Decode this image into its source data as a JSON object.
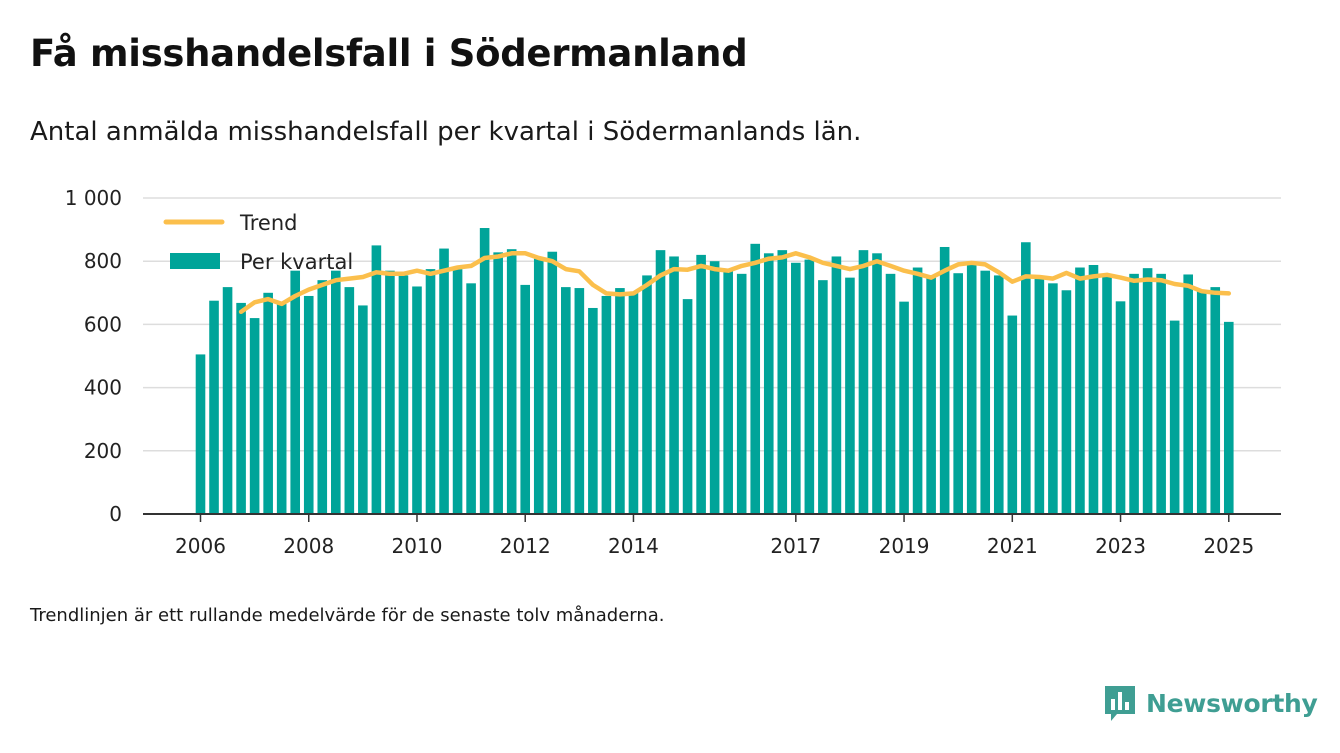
{
  "title": "Få misshandelsfall i Södermanland",
  "subtitle": "Antal anmälda misshandelsfall per kvartal i Södermanlands län.",
  "footnote": "Trendlinjen är ett rullande medelvärde för de senaste tolv månaderna.",
  "brand": {
    "name": "Newsworthy",
    "icon": "newsworthy-logo-icon"
  },
  "colors": {
    "bars": "#00a499",
    "trend": "#fbbf4c",
    "grid": "#dddddd",
    "axis": "#333333",
    "brand": "#3f9e93"
  },
  "chart_data": {
    "type": "bar",
    "grid": true,
    "legend_position": "top-left",
    "ylim": [
      0,
      1000
    ],
    "y_ticks": [
      {
        "value": 0,
        "label": "0"
      },
      {
        "value": 200,
        "label": "200"
      },
      {
        "value": 400,
        "label": "400"
      },
      {
        "value": 600,
        "label": "600"
      },
      {
        "value": 800,
        "label": "800"
      },
      {
        "value": 1000,
        "label": "1 000"
      }
    ],
    "x_ticks": [
      {
        "index": 0,
        "label": "2006"
      },
      {
        "index": 8,
        "label": "2008"
      },
      {
        "index": 16,
        "label": "2010"
      },
      {
        "index": 24,
        "label": "2012"
      },
      {
        "index": 32,
        "label": "2014"
      },
      {
        "index": 44,
        "label": "2017"
      },
      {
        "index": 52,
        "label": "2019"
      },
      {
        "index": 60,
        "label": "2021"
      },
      {
        "index": 68,
        "label": "2023"
      },
      {
        "index": 76,
        "label": "2025"
      }
    ],
    "categories": [
      "2006 Q1",
      "2006 Q2",
      "2006 Q3",
      "2006 Q4",
      "2007 Q1",
      "2007 Q2",
      "2007 Q3",
      "2007 Q4",
      "2008 Q1",
      "2008 Q2",
      "2008 Q3",
      "2008 Q4",
      "2009 Q1",
      "2009 Q2",
      "2009 Q3",
      "2009 Q4",
      "2010 Q1",
      "2010 Q2",
      "2010 Q3",
      "2010 Q4",
      "2011 Q1",
      "2011 Q2",
      "2011 Q3",
      "2011 Q4",
      "2012 Q1",
      "2012 Q2",
      "2012 Q3",
      "2012 Q4",
      "2013 Q1",
      "2013 Q2",
      "2013 Q3",
      "2013 Q4",
      "2014 Q1",
      "2014 Q2",
      "2014 Q3",
      "2014 Q4",
      "2015 Q1",
      "2015 Q2",
      "2015 Q3",
      "2015 Q4",
      "2016 Q1",
      "2016 Q2",
      "2016 Q3",
      "2016 Q4",
      "2017 Q1",
      "2017 Q2",
      "2017 Q3",
      "2017 Q4",
      "2018 Q1",
      "2018 Q2",
      "2018 Q3",
      "2018 Q4",
      "2019 Q1",
      "2019 Q2",
      "2019 Q3",
      "2019 Q4",
      "2020 Q1",
      "2020 Q2",
      "2020 Q3",
      "2020 Q4",
      "2021 Q1",
      "2021 Q2",
      "2021 Q3",
      "2021 Q4",
      "2022 Q1",
      "2022 Q2",
      "2022 Q3",
      "2022 Q4",
      "2023 Q1",
      "2023 Q2",
      "2023 Q3",
      "2023 Q4",
      "2024 Q1",
      "2024 Q2",
      "2024 Q3",
      "2024 Q4",
      "2025 Q1"
    ],
    "series": [
      {
        "name": "Per kvartal",
        "kind": "bar",
        "values": [
          505,
          675,
          718,
          668,
          620,
          700,
          665,
          770,
          690,
          740,
          770,
          718,
          660,
          850,
          770,
          755,
          720,
          775,
          840,
          775,
          730,
          905,
          828,
          838,
          725,
          808,
          830,
          718,
          715,
          652,
          690,
          715,
          702,
          755,
          835,
          815,
          680,
          820,
          800,
          770,
          760,
          855,
          825,
          835,
          795,
          805,
          740,
          815,
          748,
          835,
          825,
          760,
          672,
          780,
          750,
          845,
          762,
          790,
          770,
          755,
          628,
          860,
          750,
          730,
          708,
          780,
          788,
          760,
          673,
          760,
          778,
          760,
          612,
          758,
          710,
          718,
          608
        ]
      },
      {
        "name": "Trend",
        "kind": "line",
        "values": [
          null,
          null,
          null,
          640,
          670,
          680,
          665,
          690,
          710,
          725,
          740,
          745,
          750,
          765,
          760,
          760,
          770,
          760,
          770,
          780,
          785,
          810,
          815,
          825,
          825,
          810,
          800,
          775,
          768,
          725,
          698,
          695,
          698,
          725,
          755,
          775,
          773,
          785,
          775,
          770,
          785,
          795,
          808,
          812,
          825,
          812,
          795,
          785,
          775,
          785,
          800,
          785,
          770,
          760,
          748,
          770,
          790,
          795,
          790,
          765,
          735,
          752,
          750,
          745,
          763,
          745,
          752,
          757,
          748,
          738,
          742,
          740,
          728,
          722,
          705,
          700,
          698
        ]
      }
    ]
  }
}
